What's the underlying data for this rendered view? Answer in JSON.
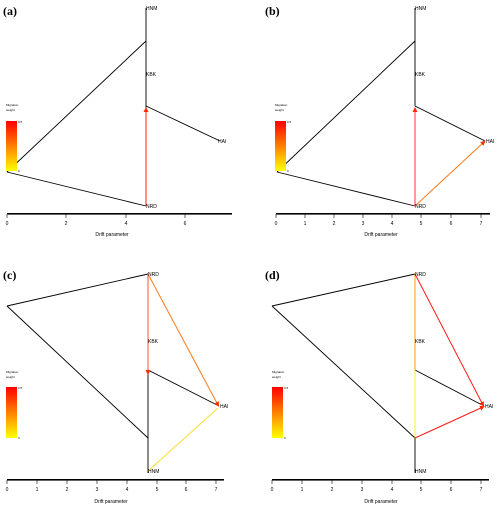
{
  "colors": {
    "drift": "#000000",
    "migration_high": "#ff0000",
    "migration_mid": "#ff8000",
    "migration_low": "#ffff00"
  },
  "axis_title": "Drift parameter",
  "legend": {
    "title_line1": "Migration",
    "title_line2": "weight",
    "max_label": "0.5",
    "min_label": "0"
  },
  "panels": [
    {
      "label": "(a)",
      "ticks": [
        "0",
        "2",
        "4",
        "6"
      ],
      "nodes": [
        "HNM",
        "KBK",
        "HAI",
        "NRD"
      ],
      "migration_edges": [
        {
          "from_label": "NRD",
          "to_label": "KBK",
          "weight": 0.5
        }
      ]
    },
    {
      "label": "(b)",
      "ticks": [
        "0",
        "1",
        "2",
        "3",
        "4",
        "5",
        "6",
        "7"
      ],
      "nodes": [
        "HNM",
        "KBK",
        "HAI",
        "NRD"
      ],
      "migration_edges": [
        {
          "from_label": "NRD",
          "to_label": "KBK",
          "weight": 0.45
        },
        {
          "from_label": "NRD",
          "to_label": "HAI",
          "weight": 0.3
        }
      ]
    },
    {
      "label": "(c)",
      "ticks": [
        "0",
        "1",
        "2",
        "3",
        "4",
        "5",
        "6",
        "7"
      ],
      "nodes": [
        "NRD",
        "KBK",
        "HAI",
        "HNM"
      ],
      "migration_edges": [
        {
          "from_label": "NRD",
          "to_label": "KBK",
          "weight": 0.4
        },
        {
          "from_label": "NRD",
          "to_label": "HAI",
          "weight": 0.3
        },
        {
          "from_label": "HNM",
          "to_label": "HAI",
          "weight": 0.05
        }
      ]
    },
    {
      "label": "(d)",
      "ticks": [
        "0",
        "1",
        "2",
        "3",
        "4",
        "5",
        "6",
        "7"
      ],
      "nodes": [
        "NRD",
        "KBK",
        "HAI",
        "HNM"
      ],
      "migration_edges": [
        {
          "from_label": "NRD",
          "to_label": "HAI",
          "weight": 0.5
        },
        {
          "from_label": "HNM",
          "to_label": "HAI",
          "weight": 0.5
        },
        {
          "from_label": "NRD",
          "to_label": "KBK",
          "weight": 0.2
        },
        {
          "from_label": "KBK",
          "to_label": "HNM",
          "weight": 0.05
        }
      ]
    }
  ]
}
